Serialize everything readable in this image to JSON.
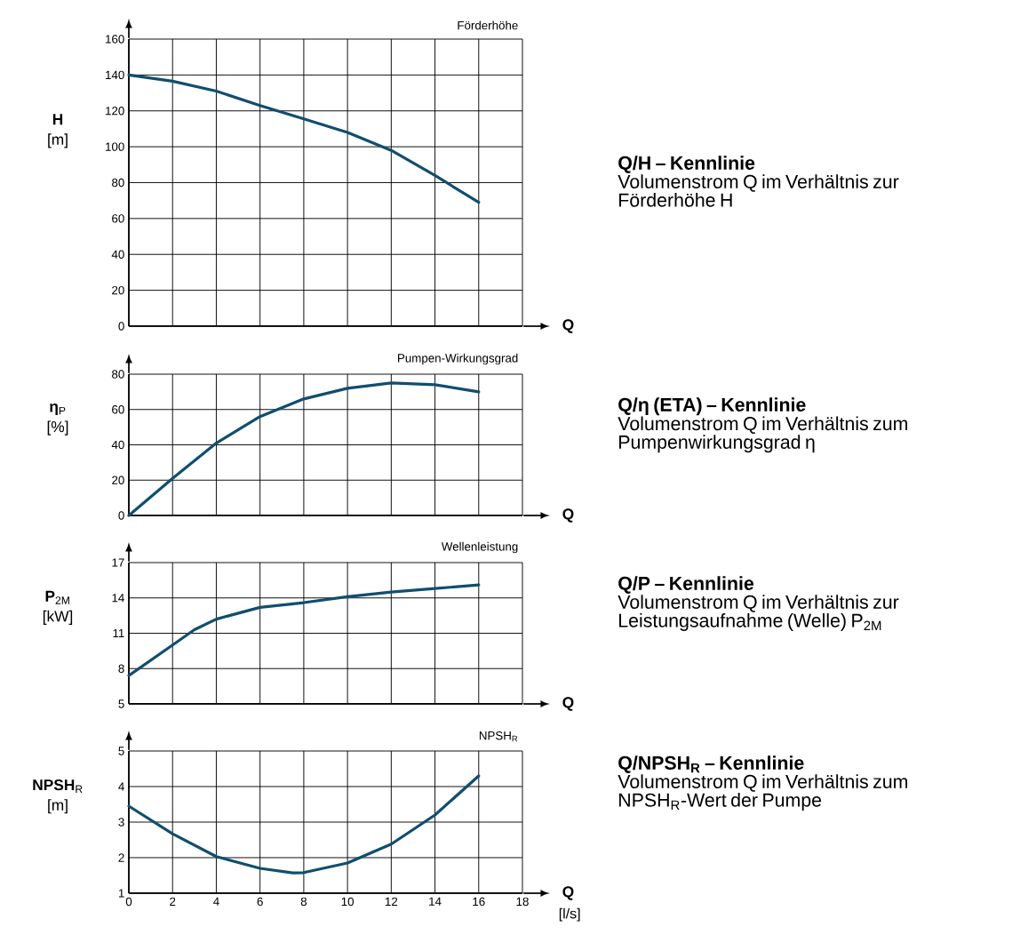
{
  "chart_data": [
    {
      "type": "line",
      "xlabel": "Q",
      "ylabel": "**H** [m]",
      "xlim": [
        0,
        18
      ],
      "xticks": [
        0,
        2,
        4,
        6,
        8,
        10,
        12,
        14,
        16,
        18
      ],
      "ylim": [
        0,
        160
      ],
      "yticks": [
        0,
        20,
        40,
        60,
        80,
        100,
        120,
        140,
        160
      ],
      "grid": true,
      "tick_labels": "y",
      "series": [
        {
          "name": "Förderhöhe",
          "color": "#104e6e",
          "x": [
            0,
            2,
            4,
            6,
            8,
            10,
            12,
            14,
            16
          ],
          "values": [
            140,
            136.5,
            131,
            123,
            115.5,
            108,
            98,
            84,
            69
          ]
        }
      ]
    },
    {
      "type": "other",
      "title": "Q/H – Kennlinie",
      "subtitle": "Volumenstrom Q im Verhältnis zur Förderhöhe H"
    },
    {
      "type": "line",
      "xlabel": "Q",
      "ylabel": "**η**$_{P}$ [%]",
      "xlim": [
        0,
        18
      ],
      "xticks": [
        0,
        2,
        4,
        6,
        8,
        10,
        12,
        14,
        16,
        18
      ],
      "ylim": [
        0,
        80
      ],
      "yticks": [
        0,
        20,
        40,
        60,
        80
      ],
      "grid": true,
      "tick_labels": "y",
      "series": [
        {
          "name": "Pumpen-Wirkungsgrad",
          "color": "#104e6e",
          "x": [
            0,
            2,
            4,
            6,
            8,
            10,
            12,
            14,
            16
          ],
          "values": [
            0,
            21,
            41,
            56,
            66,
            72,
            75,
            74,
            70
          ]
        }
      ]
    },
    {
      "type": "other",
      "title": "Q/η (ETA) – Kennlinie",
      "subtitle": "Volumenstrom Q im Verhältnis zum Pumpenwirkungsgrad η"
    },
    {
      "type": "line",
      "xlabel": "Q",
      "ylabel": "**P**$_{2M}$ [kW]",
      "xlim": [
        0,
        18
      ],
      "xticks": [
        0,
        2,
        4,
        6,
        8,
        10,
        12,
        14,
        16,
        18
      ],
      "ylim": [
        5,
        17
      ],
      "yticks": [
        5,
        8,
        11,
        14,
        17
      ],
      "grid": true,
      "tick_labels": "y",
      "series": [
        {
          "name": "Wellenleistung",
          "color": "#104e6e",
          "x": [
            0,
            2,
            3,
            4,
            6,
            8,
            10,
            12,
            14,
            16
          ],
          "values": [
            7.4,
            10,
            11.3,
            12.2,
            13.2,
            13.6,
            14.1,
            14.5,
            14.8,
            15.1
          ]
        }
      ]
    },
    {
      "type": "other",
      "title": "Q/P – Kennlinie",
      "subtitle": "Volumenstrom Q im Verhältnis zur Leistungsaufnahme (Welle) P$_{2M}$"
    },
    {
      "type": "line",
      "xlabel": "Q",
      "ylabel": "**NPSH**$_{R}$ [m]",
      "xlim": [
        0,
        18
      ],
      "xticks": [
        0,
        2,
        4,
        6,
        8,
        10,
        12,
        14,
        16,
        18
      ],
      "ylim": [
        1,
        5
      ],
      "yticks": [
        1,
        2,
        3,
        4,
        5
      ],
      "grid": true,
      "annotations": [
        "[l/s]"
      ],
      "series": [
        {
          "name": "NPSH$_{R}$",
          "color": "#104e6e",
          "x": [
            0,
            2,
            4,
            6,
            7.5,
            8,
            10,
            12,
            14,
            16
          ],
          "values": [
            3.45,
            2.67,
            2.03,
            1.7,
            1.57,
            1.58,
            1.85,
            2.38,
            3.2,
            4.3
          ]
        }
      ]
    },
    {
      "type": "other",
      "title": "Q/NPSH$_{R}$ – Kennlinie",
      "subtitle": "Volumenstrom Q im Verhältnis zum NPSH$_{R}$-Wert der Pumpe"
    }
  ]
}
